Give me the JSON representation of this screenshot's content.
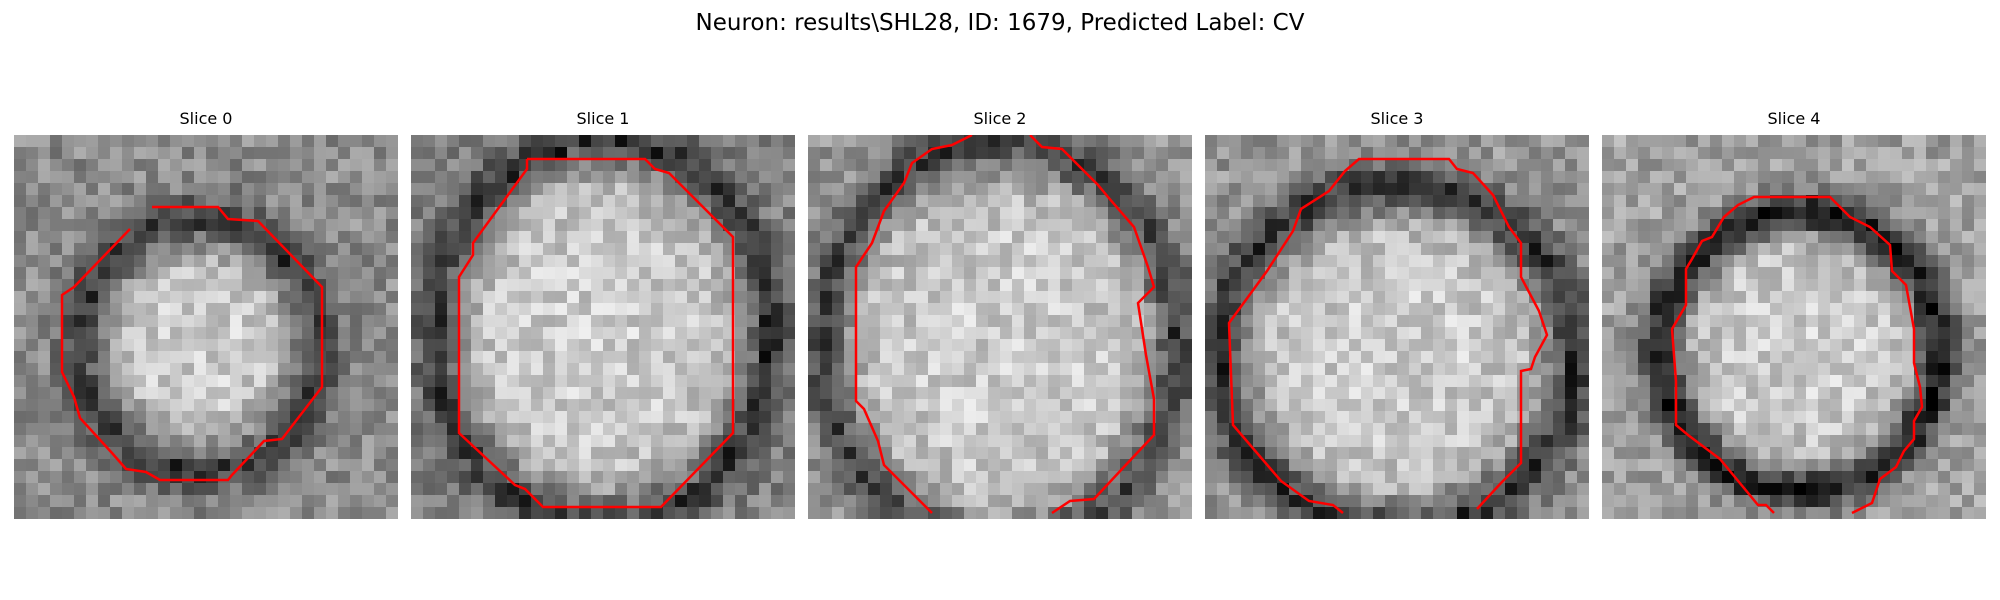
{
  "figure": {
    "title": "Neuron: results\\SHL28, ID: 1679, Predicted Label: CV"
  },
  "panels": [
    {
      "title": "Slice 0"
    },
    {
      "title": "Slice 1"
    },
    {
      "title": "Slice 2"
    },
    {
      "title": "Slice 3"
    },
    {
      "title": "Slice 4"
    }
  ],
  "colors": {
    "contour": "#ff0000",
    "background": "#ffffff"
  }
}
